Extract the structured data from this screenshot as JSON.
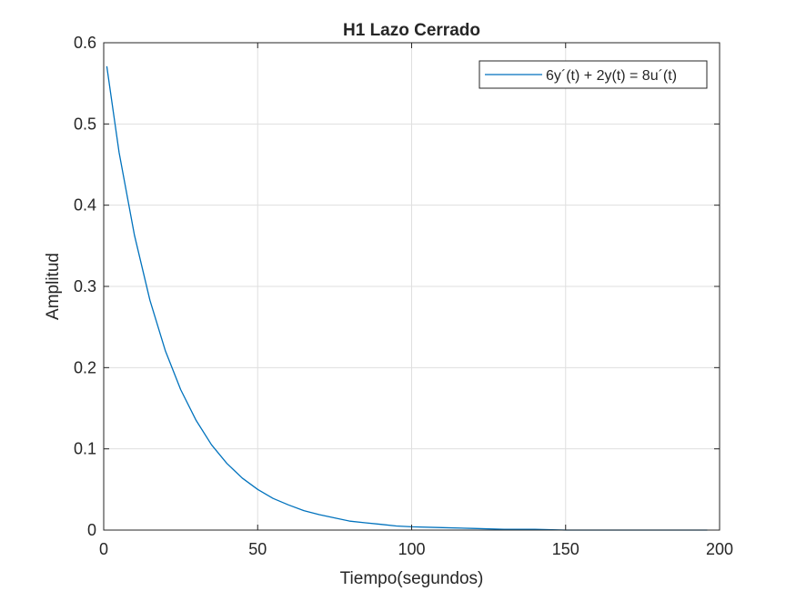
{
  "chart_data": {
    "type": "line",
    "title": "H1 Lazo Cerrado",
    "xlabel": "Tiempo(segundos)",
    "ylabel": "Amplitud",
    "xlim": [
      0,
      200
    ],
    "ylim": [
      0,
      0.6
    ],
    "xticks": [
      0,
      50,
      100,
      150,
      200
    ],
    "yticks": [
      0,
      0.1,
      0.2,
      0.3,
      0.4,
      0.5,
      0.6
    ],
    "xtick_labels": [
      "0",
      "50",
      "100",
      "150",
      "200"
    ],
    "ytick_labels": [
      "0",
      "0.1",
      "0.2",
      "0.3",
      "0.4",
      "0.5",
      "0.6"
    ],
    "grid": true,
    "legend_position": "top-right",
    "series": [
      {
        "name": "6y´(t) + 2y(t) = 8u´(t)",
        "color": "#0072BD",
        "x": [
          1,
          5,
          10,
          15,
          20,
          25,
          30,
          35,
          40,
          45,
          50,
          55,
          60,
          65,
          70,
          75,
          80,
          85,
          90,
          95,
          100,
          110,
          120,
          130,
          140,
          150,
          160,
          170,
          180,
          190,
          196
        ],
        "y": [
          0.571,
          0.465,
          0.363,
          0.283,
          0.221,
          0.173,
          0.135,
          0.105,
          0.082,
          0.064,
          0.05,
          0.039,
          0.031,
          0.024,
          0.019,
          0.015,
          0.011,
          0.009,
          0.007,
          0.005,
          0.004,
          0.003,
          0.002,
          0.001,
          0.001,
          0.0,
          0.0,
          0.0,
          0.0,
          0.0,
          0.0
        ]
      }
    ]
  }
}
